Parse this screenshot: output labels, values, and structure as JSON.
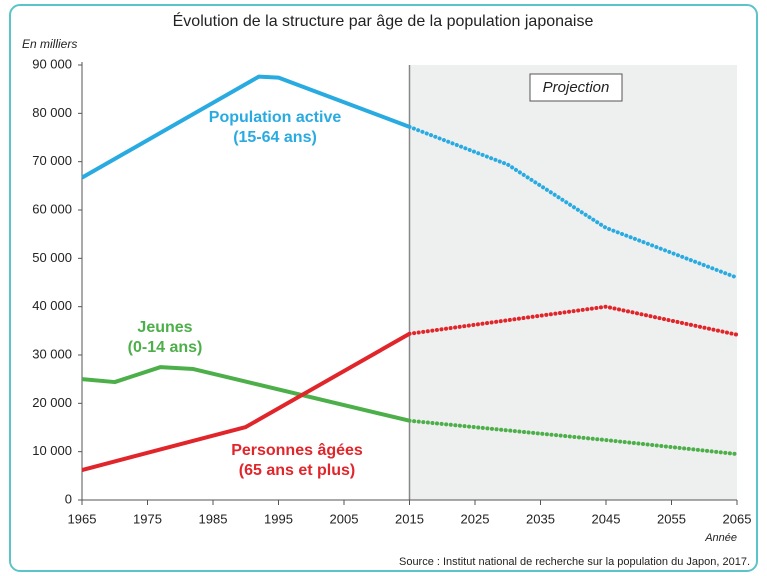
{
  "chart_data": {
    "type": "line",
    "title": "Évolution de la structure par âge de la population japonaise",
    "y_label": "En milliers",
    "x_label": "Année",
    "source": "Source : Institut national de recherche sur la population du Japon, 2017.",
    "projection": {
      "label": "Projection",
      "xlim": [
        2015,
        2065
      ]
    },
    "xlim": [
      1965,
      2065
    ],
    "xticks": [
      1965,
      1975,
      1985,
      1995,
      2005,
      2015,
      2025,
      2035,
      2045,
      2055,
      2065
    ],
    "ylim": [
      0,
      90000
    ],
    "yticks": [
      0,
      {
        "value": 10000,
        "label": "10 000"
      },
      {
        "value": 20000,
        "label": "20 000"
      },
      {
        "value": 30000,
        "label": "30 000"
      },
      {
        "value": 40000,
        "label": "40 000"
      },
      {
        "value": 50000,
        "label": "50 000"
      },
      {
        "value": 60000,
        "label": "60 000"
      },
      {
        "value": 70000,
        "label": "70 000"
      },
      {
        "value": 80000,
        "label": "80 000"
      },
      {
        "value": 90000,
        "label": "90 000"
      }
    ],
    "series": [
      {
        "name": "Population active",
        "age": "(15-64 ans)",
        "color": "#29abe2",
        "x": [
          1965,
          1992,
          1995,
          2015,
          2030,
          2045,
          2065
        ],
        "values": [
          66700,
          87600,
          87400,
          77200,
          69400,
          56300,
          46000
        ]
      },
      {
        "name": "Jeunes",
        "age": "(0-14 ans)",
        "color": "#4daf4a",
        "x": [
          1965,
          1970,
          1977,
          1982,
          2015,
          2045,
          2065
        ],
        "values": [
          25000,
          24400,
          27500,
          27100,
          16400,
          12400,
          9500
        ]
      },
      {
        "name": "Personnes âgées",
        "age": "(65 ans et plus)",
        "color": "#e0262b",
        "x": [
          1965,
          1990,
          2015,
          2045,
          2065
        ],
        "values": [
          6200,
          15100,
          34400,
          40000,
          34200
        ]
      }
    ]
  }
}
